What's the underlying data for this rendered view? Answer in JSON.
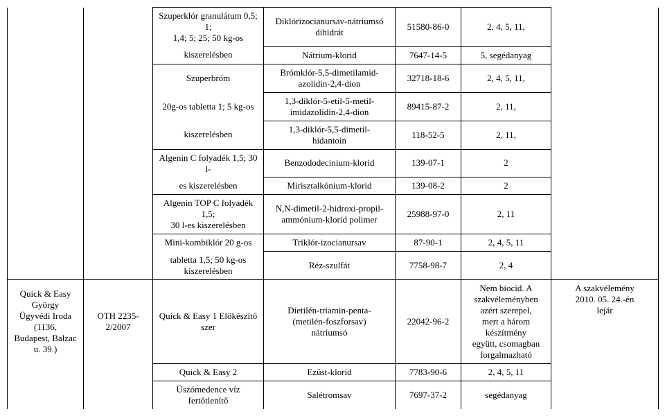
{
  "colwidths": [
    "110px",
    "100px",
    "160px",
    "190px",
    "95px",
    "130px",
    "155px"
  ],
  "rows": [
    {
      "c0": null,
      "c1": null,
      "c2": "Szuperklór granulátum 0,5; 1;\n1,4; 5; 25; 50 kg-os",
      "c3": "Diklórizocianursav-nátriumsó\ndihidrát",
      "c4": "51580-86-0",
      "c5": "2, 4, 5, 11,",
      "c6": null
    },
    {
      "c0": null,
      "c1": null,
      "c2": "kiszerelésben",
      "c3": "Nátrium-klorid",
      "c4": "7647-14-5",
      "c5": "5, segédanyag",
      "c6": null
    },
    {
      "c0": null,
      "c1": null,
      "c2": "Szuperbróm",
      "c3": "Brómklór-5,5-dimetilamid-\nazolidin-2,4-dion",
      "c4": "32718-18-6",
      "c5": "2, 4, 5, 11,",
      "c6": null
    },
    {
      "c0": null,
      "c1": null,
      "c2": "20g-os tabletta 1; 5 kg-os",
      "c3": "1,3-diklór-5-etil-5-metil-\nimidazolidin-2,4-dion",
      "c4": "89415-87-2",
      "c5": "2, 11,",
      "c6": null
    },
    {
      "c0": null,
      "c1": null,
      "c2": "kiszerelésben",
      "c3": "1,3-diklór-5,5-dimetil-\nhidantoin",
      "c4": "118-52-5",
      "c5": "2, 11,",
      "c6": null
    },
    {
      "c0": null,
      "c1": null,
      "c2": "Algenin C folyadék 1,5; 30 l-",
      "c3": "Benzododecinium-klorid",
      "c4": "139-07-1",
      "c5": "2",
      "c6": null
    },
    {
      "c0": null,
      "c1": null,
      "c2": "es kiszerelésben",
      "c3": "Mirisztalkónium-klorid",
      "c4": "139-08-2",
      "c5": "2",
      "c6": null
    },
    {
      "c0": null,
      "c1": null,
      "c2": "Algenin TOP C folyadék 1,5;\n30 l-es kiszerelésben",
      "c3": "N,N-dimetil-2-hidroxi-propil-\nammónium-klorid polimer",
      "c4": "25988-97-0",
      "c5": "2, 11",
      "c6": null
    },
    {
      "c0": null,
      "c1": null,
      "c2": "Mini-kombiklór 20 g-os",
      "c3": "Triklór-izocianursav",
      "c4": "87-90-1",
      "c5": "2, 4, 5, 11",
      "c6": null
    },
    {
      "c0": null,
      "c1": null,
      "c2": "tabletta 1,5; 50 kg-os\nkiszerelésben",
      "c3": "Réz-szulfát",
      "c4": "7758-98-7",
      "c5": "2, 4",
      "c6": null
    },
    {
      "c0": "Quick & Easy György\nÜgyvédi Iroda (1136,\nBudapest, Balzac u. 39.)",
      "c1": "OTH 2235-2/2007",
      "c2": "Quick & Easy 1 Előkészítő\nszer",
      "c3": "Dietilén-triamin-penta-\n(metilén-foszforsav)\nnátriumsó",
      "c4": "22042-96-2",
      "c5": "Nem biocid. A\nszakvéleményben\nazért szerepel,\nmert a három\nkészítmény\negyütt, csomagban\nforgalmazható",
      "c6": "A szakvélemény\n2010. 05. 24.-én\nlejár"
    },
    {
      "c0": null,
      "c1": null,
      "c2": "Quick & Easy 2",
      "c3": "Ezüst-klorid",
      "c4": "7783-90-6",
      "c5": "2, 4, 5, 11",
      "c6": null
    },
    {
      "c0": null,
      "c1": null,
      "c2": "Úszómedence víz fertőtlenítő",
      "c3": "Salétromsav",
      "c4": "7697-37-2",
      "c5": "segédanyag",
      "c6": null
    }
  ]
}
